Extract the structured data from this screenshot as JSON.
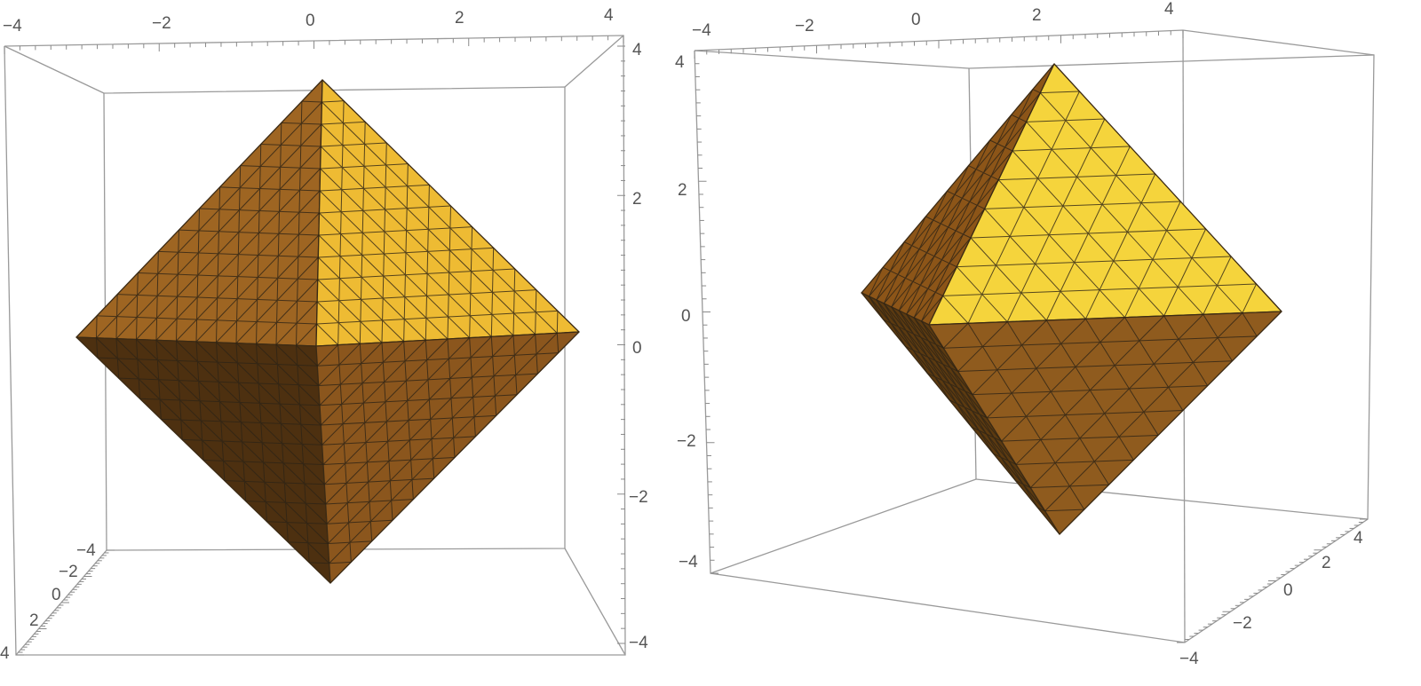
{
  "left_plot": {
    "x_ticks": [
      "−4",
      "−2",
      "0",
      "2",
      "4"
    ],
    "y_ticks": [
      "−4",
      "−2",
      "0",
      "2",
      "4"
    ],
    "z_ticks": [
      "4",
      "2",
      "0",
      "−2",
      "−4"
    ],
    "colors": {
      "upper_right": "#eebb33",
      "upper_left": "#9e6522",
      "lower_right": "#8b561d",
      "lower_left": "#4d3010"
    }
  },
  "right_plot": {
    "x_ticks": [
      "−4",
      "−2",
      "0",
      "2",
      "4"
    ],
    "y_ticks": [
      "−4",
      "−2",
      "0",
      "2",
      "4"
    ],
    "z_ticks": [
      "4",
      "2",
      "0",
      "−2",
      "−4"
    ],
    "colors": {
      "top": "#f5d43c",
      "left": "#8c5518",
      "left_lower": "#5c3a10",
      "bottom": "#8f5b1e"
    }
  }
}
